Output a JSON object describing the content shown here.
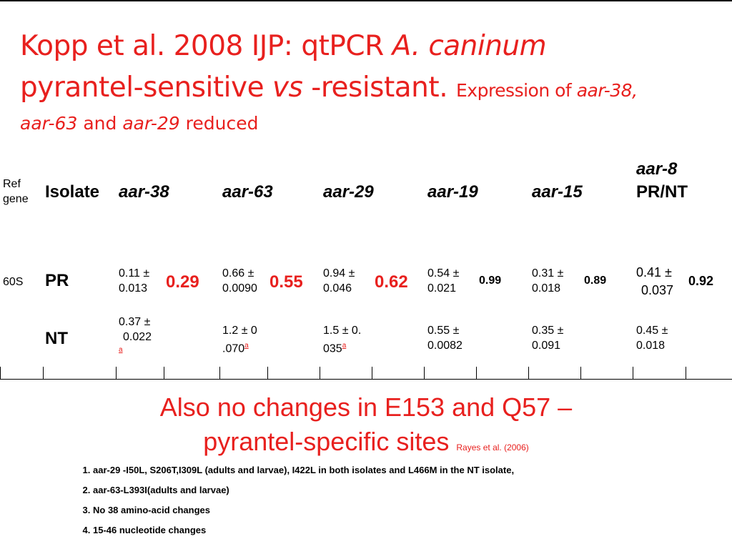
{
  "title": {
    "line1_plain": "Kopp et al. 2008 IJP:  qtPCR ",
    "line1_italic": "A. caninum",
    "line2_plain": "pyrantel-sensitive ",
    "line2_italic": "vs",
    "line2_tail": " -resistant. ",
    "line2_small": "Expression of ",
    "line2_small_italic": "aar-38,",
    "line3_italic1": "aar-63",
    "line3_mid": " and ",
    "line3_italic2": "aar-29",
    "line3_tail": " reduced"
  },
  "table": {
    "ref_gene_header": [
      "Ref",
      "gene"
    ],
    "isolate_header": "Isolate",
    "gene_headers": [
      "aar-38",
      "aar-63",
      "aar-29",
      "aar-19",
      "aar-15"
    ],
    "last_header_line1": "aar-8",
    "last_header_line2": "PR/NT",
    "ref_gene": "60S",
    "rows": [
      {
        "isolate": "PR",
        "cells": [
          {
            "l1": "0.11 ±",
            "l2": "0.013",
            "ratio": "0.29"
          },
          {
            "l1": "0.66 ±",
            "l2": "0.0090",
            "ratio": "0.55"
          },
          {
            "l1": "0.94 ±",
            "l2": "0.046",
            "ratio": "0.62"
          },
          {
            "l1": "0.54 ±",
            "l2": "0.021",
            "ratio": "0.99"
          },
          {
            "l1": "0.31 ±",
            "l2": "0.018",
            "ratio": "0.89"
          },
          {
            "l1": "0.41 ±",
            "l2": "0.037",
            "ratio": "0.92"
          }
        ]
      },
      {
        "isolate": "NT",
        "cells": [
          {
            "l1": "0.37 ±",
            "l2": "0.022",
            "footnote": "a"
          },
          {
            "l1": "1.2 ± 0",
            "l2": ".070",
            "footnote": "a"
          },
          {
            "l1": "1.5 ± 0.",
            "l2": "035",
            "footnote": "a"
          },
          {
            "l1": "0.55 ±",
            "l2": "0.0082"
          },
          {
            "l1": "0.35 ±",
            "l2": "0.091"
          },
          {
            "l1": "0.45 ±",
            "l2": "0.018"
          }
        ]
      }
    ]
  },
  "banner": {
    "line1": "Also no changes in E153 and Q57 –",
    "line2": "pyrantel-specific sites",
    "citation": "Rayes et al.  (2006)"
  },
  "notes": [
    "aar-29 -I50L, S206T,I309L (adults and larvae), I422L in both isolates and L466M in the NT isolate,",
    "aar-63-L393I(adults and larvae)",
    "No 38 amino-acid changes",
    "15-46 nucleotide changes"
  ],
  "colors": {
    "accent": "#e8201e",
    "text": "#000000"
  }
}
